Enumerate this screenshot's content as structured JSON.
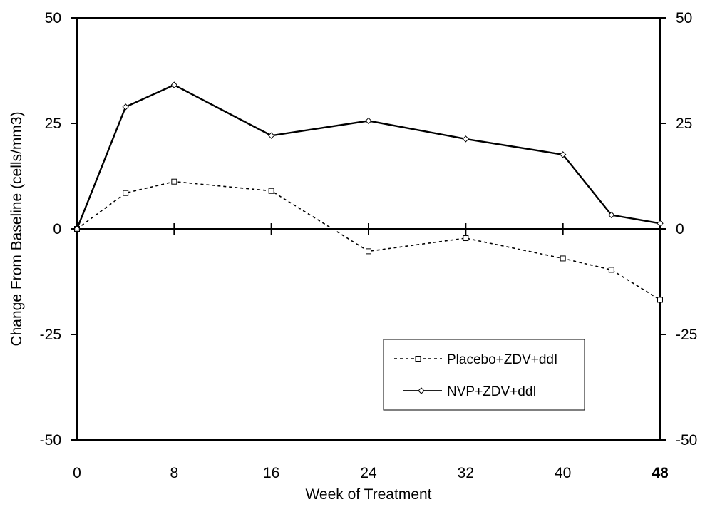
{
  "chart_data": {
    "type": "line",
    "title": "",
    "xlabel": "Week of Treatment",
    "ylabel": "Change From Baseline (cells/mm3)",
    "xlim": [
      0,
      48
    ],
    "ylim": [
      -50,
      50
    ],
    "x_ticks": [
      "0",
      "8",
      "16",
      "24",
      "32",
      "40",
      "48"
    ],
    "y_ticks": [
      "50",
      "25",
      "0",
      "-25",
      "-50"
    ],
    "grid": false,
    "legend_position": "bottom-right",
    "series": [
      {
        "name": "Placebo+ZDV+ddI",
        "style": "dashed",
        "marker": "square",
        "color": "#000000",
        "x": [
          0,
          4,
          8,
          16,
          24,
          32,
          40,
          44,
          48
        ],
        "values": [
          0,
          8.5,
          11.2,
          9.0,
          -5.3,
          -2.2,
          -7.0,
          -9.7,
          -16.8
        ]
      },
      {
        "name": "NVP+ZDV+ddI",
        "style": "solid",
        "marker": "diamond",
        "color": "#000000",
        "x": [
          0,
          4,
          8,
          16,
          24,
          32,
          40,
          44,
          48
        ],
        "values": [
          0,
          28.9,
          34.1,
          22.1,
          25.6,
          21.3,
          17.6,
          3.3,
          1.3
        ]
      }
    ]
  }
}
